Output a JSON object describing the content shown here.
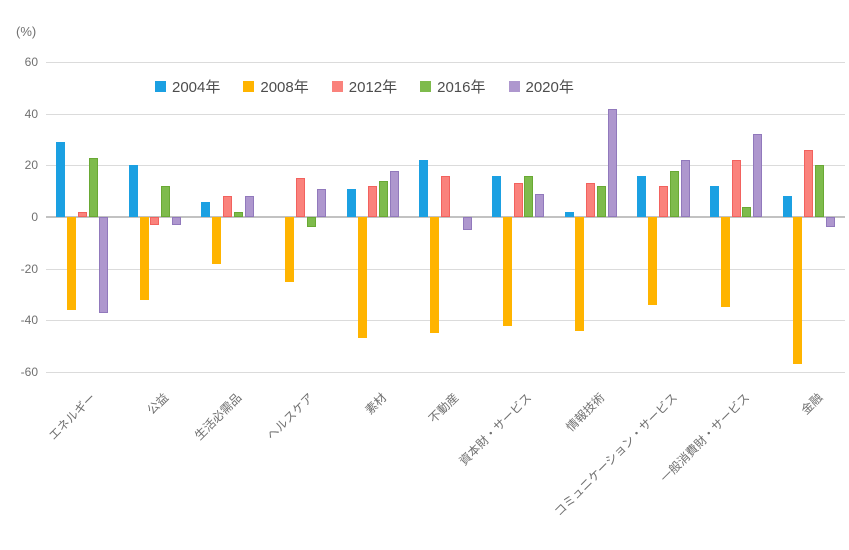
{
  "chart_data": {
    "type": "bar",
    "title": "",
    "unit_label": "(%)",
    "legend_position": "top",
    "grid": true,
    "categories": [
      "エネルギー",
      "公益",
      "生活必需品",
      "ヘルスケア",
      "素材",
      "不動産",
      "資本財・サービス",
      "情報技術",
      "コミュニケーション・サービス",
      "一般消費財・サービス",
      "金融"
    ],
    "series": [
      {
        "name": "2004年",
        "color": "#1BA0E2",
        "border": "#1BA0E2",
        "values": [
          29,
          20,
          6,
          0,
          11,
          22,
          16,
          2,
          16,
          12,
          8
        ]
      },
      {
        "name": "2008年",
        "color": "#FFB400",
        "border": "#FFB400",
        "values": [
          -36,
          -32,
          -18,
          -25,
          -47,
          -45,
          -42,
          -44,
          -34,
          -35,
          -57
        ]
      },
      {
        "name": "2012年",
        "color": "#FA827C",
        "border": "#F2625E",
        "values": [
          2,
          -3,
          8,
          15,
          12,
          16,
          13,
          13,
          12,
          22,
          26
        ]
      },
      {
        "name": "2016年",
        "color": "#7EBB4C",
        "border": "#69A934",
        "values": [
          23,
          12,
          2,
          -4,
          14,
          0,
          16,
          12,
          18,
          4,
          20
        ]
      },
      {
        "name": "2020年",
        "color": "#AE97CE",
        "border": "#9179BC",
        "values": [
          -37,
          -3,
          8,
          11,
          18,
          -5,
          9,
          42,
          22,
          32,
          -4
        ]
      }
    ],
    "y_axis": {
      "min": -60,
      "max": 60,
      "step": 20,
      "tick_labels": [
        "60",
        "40",
        "20",
        "0",
        "-20",
        "-40",
        "-60"
      ]
    }
  }
}
